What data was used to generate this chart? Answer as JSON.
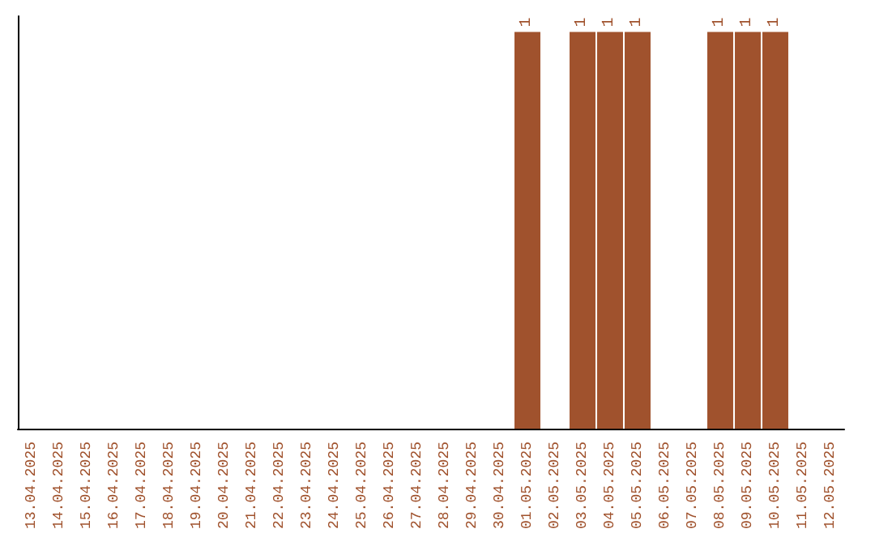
{
  "chart_data": {
    "type": "bar",
    "ylim": [
      0,
      1.04
    ],
    "tick_labels": "x",
    "color": "#a0522d",
    "categories": [
      "13.04.2025",
      "14.04.2025",
      "15.04.2025",
      "16.04.2025",
      "17.04.2025",
      "18.04.2025",
      "19.04.2025",
      "20.04.2025",
      "21.04.2025",
      "22.04.2025",
      "23.04.2025",
      "24.04.2025",
      "25.04.2025",
      "26.04.2025",
      "27.04.2025",
      "28.04.2025",
      "29.04.2025",
      "30.04.2025",
      "01.05.2025",
      "02.05.2025",
      "03.05.2025",
      "04.05.2025",
      "05.05.2025",
      "06.05.2025",
      "07.05.2025",
      "08.05.2025",
      "09.05.2025",
      "10.05.2025",
      "11.05.2025",
      "12.05.2025"
    ],
    "values": [
      null,
      null,
      null,
      null,
      null,
      null,
      null,
      null,
      null,
      null,
      null,
      null,
      null,
      null,
      null,
      null,
      null,
      null,
      1,
      null,
      1,
      1,
      1,
      null,
      null,
      1,
      1,
      1,
      null,
      null
    ],
    "data_labels": true,
    "grid": false
  }
}
